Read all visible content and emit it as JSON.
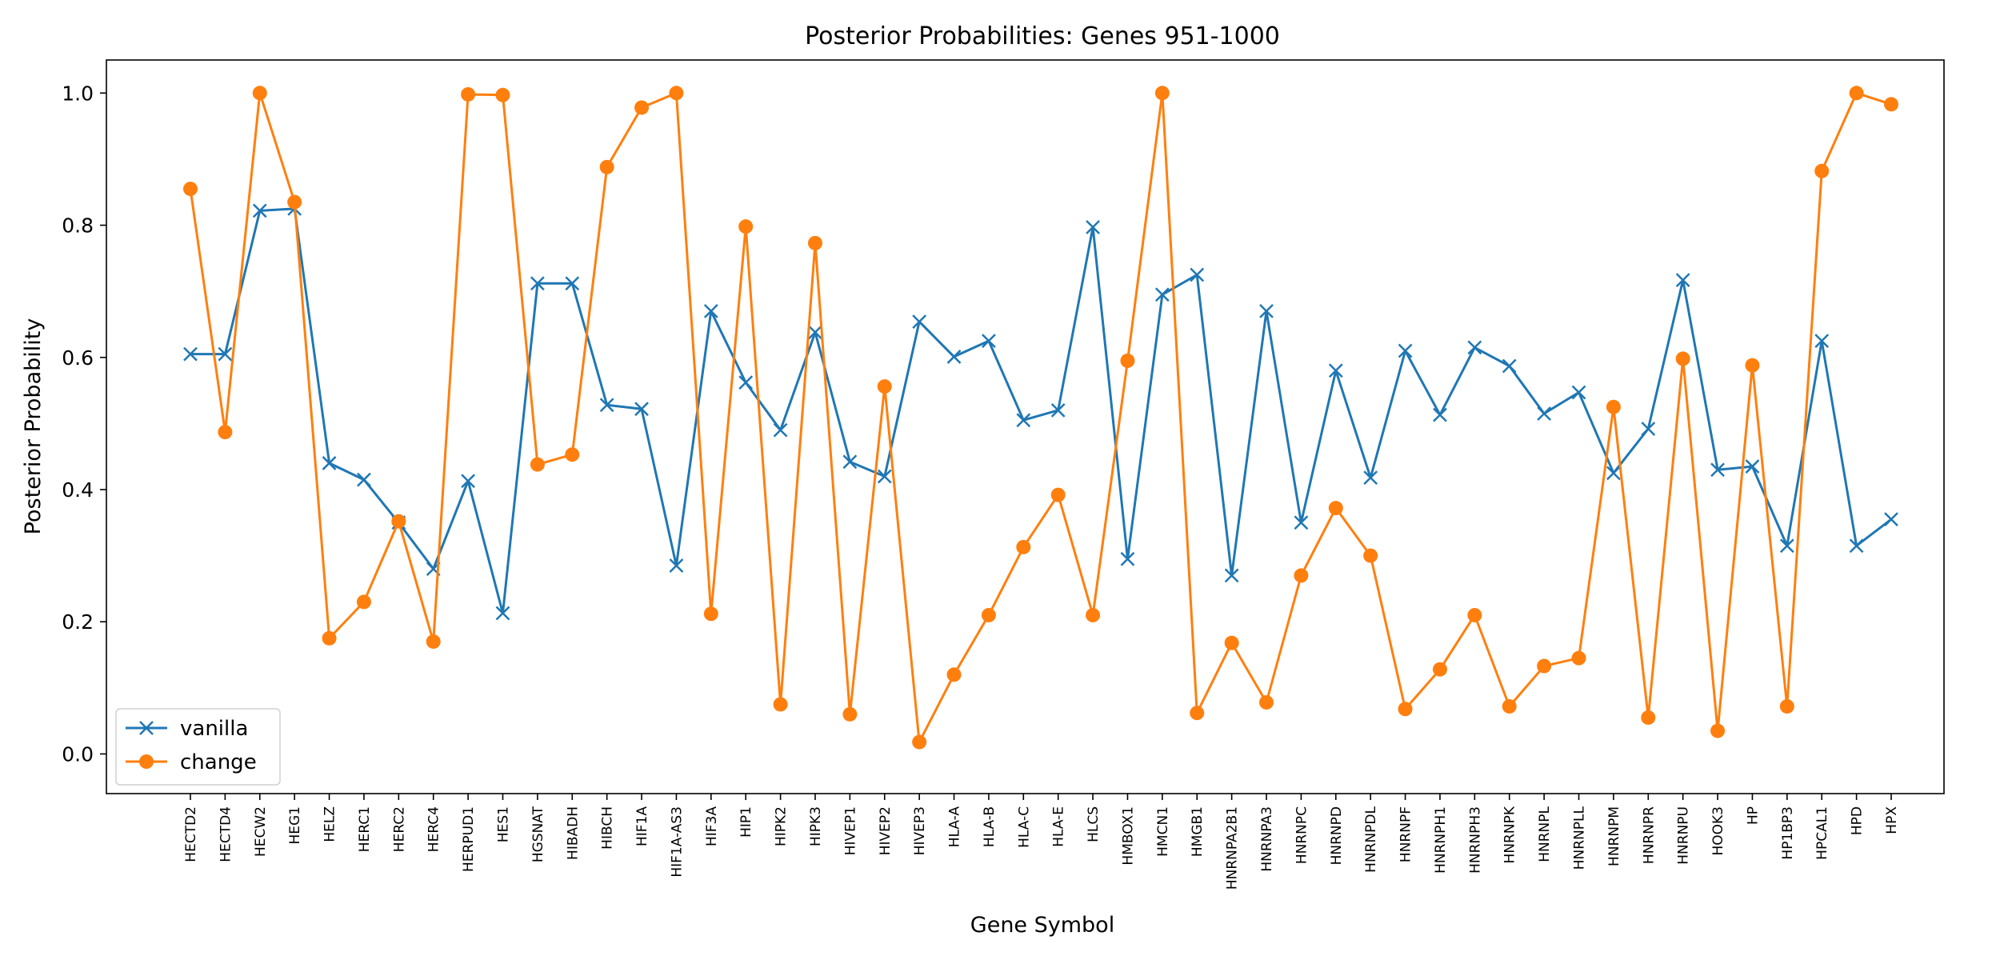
{
  "chart_data": {
    "type": "line",
    "title": "Posterior Probabilities: Genes 951-1000",
    "xlabel": "Gene Symbol",
    "ylabel": "Posterior Probability",
    "ylim": [
      -0.06,
      1.05
    ],
    "yticks": [
      "0.0",
      "0.2",
      "0.4",
      "0.6",
      "0.8",
      "1.0"
    ],
    "grid": false,
    "legend_position": "lower-left",
    "categories": [
      "HECTD2",
      "HECTD4",
      "HECW2",
      "HEG1",
      "HELZ",
      "HERC1",
      "HERC2",
      "HERC4",
      "HERPUD1",
      "HES1",
      "HGSNAT",
      "HIBADH",
      "HIBCH",
      "HIF1A",
      "HIF1A-AS3",
      "HIF3A",
      "HIP1",
      "HIPK2",
      "HIPK3",
      "HIVEP1",
      "HIVEP2",
      "HIVEP3",
      "HLA-A",
      "HLA-B",
      "HLA-C",
      "HLA-E",
      "HLCS",
      "HMBOX1",
      "HMCN1",
      "HMGB1",
      "HNRNPA2B1",
      "HNRNPA3",
      "HNRNPC",
      "HNRNPD",
      "HNRNPDL",
      "HNRNPF",
      "HNRNPH1",
      "HNRNPH3",
      "HNRNPK",
      "HNRNPL",
      "HNRNPLL",
      "HNRNPM",
      "HNRNPR",
      "HNRNPU",
      "HOOK3",
      "HP",
      "HP1BP3",
      "HPCAL1",
      "HPD",
      "HPX"
    ],
    "series": [
      {
        "name": "vanilla",
        "color": "#1f77b4",
        "marker": "x",
        "values": [
          0.605,
          0.605,
          0.822,
          0.825,
          0.44,
          0.415,
          0.35,
          0.28,
          0.413,
          0.213,
          0.712,
          0.712,
          0.528,
          0.522,
          0.285,
          0.67,
          0.562,
          0.49,
          0.638,
          0.442,
          0.42,
          0.654,
          0.601,
          0.625,
          0.505,
          0.52,
          0.797,
          0.295,
          0.695,
          0.725,
          0.27,
          0.67,
          0.35,
          0.58,
          0.418,
          0.61,
          0.513,
          0.615,
          0.587,
          0.515,
          0.547,
          0.425,
          0.492,
          0.717,
          0.43,
          0.435,
          0.315,
          0.625,
          0.315,
          0.355
        ]
      },
      {
        "name": "change",
        "color": "#ff7f0e",
        "marker": "o",
        "values": [
          0.855,
          0.487,
          1.0,
          0.835,
          0.175,
          0.23,
          0.352,
          0.17,
          0.998,
          0.997,
          0.438,
          0.453,
          0.888,
          0.978,
          1.0,
          0.212,
          0.798,
          0.075,
          0.773,
          0.06,
          0.556,
          0.018,
          0.12,
          0.21,
          0.313,
          0.392,
          0.21,
          0.595,
          1.0,
          0.062,
          0.168,
          0.078,
          0.27,
          0.372,
          0.3,
          0.068,
          0.128,
          0.21,
          0.072,
          0.133,
          0.145,
          0.525,
          0.055,
          0.598,
          0.035,
          0.588,
          0.072,
          0.882,
          1.0,
          0.983
        ]
      }
    ]
  }
}
